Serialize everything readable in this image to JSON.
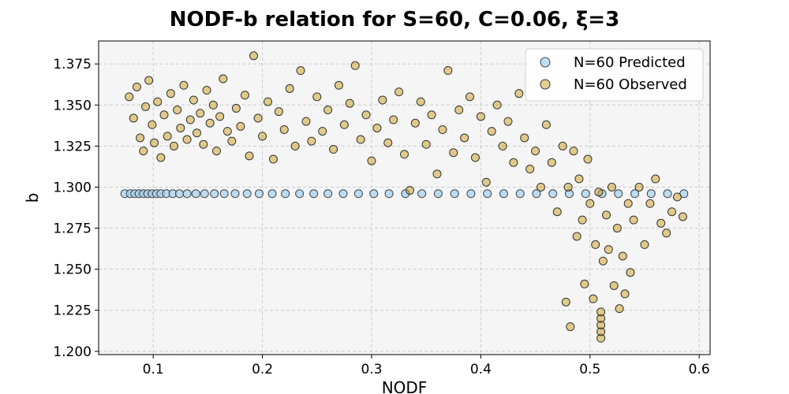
{
  "chart_data": {
    "type": "scatter",
    "title": "NODF-b relation for S=60, C=0.06, ξ=3",
    "xlabel": "NODF",
    "ylabel": "b",
    "xlim": [
      0.05,
      0.61
    ],
    "ylim": [
      1.198,
      1.389
    ],
    "xticks": [
      "0.1",
      "0.2",
      "0.3",
      "0.4",
      "0.5",
      "0.6"
    ],
    "yticks": [
      "1.200",
      "1.225",
      "1.250",
      "1.275",
      "1.300",
      "1.325",
      "1.350",
      "1.375"
    ],
    "grid": true,
    "legend_position": "top-right",
    "series": [
      {
        "name": "N=60 Predicted",
        "color": "#a7d3f0",
        "points": [
          [
            0.074,
            1.296
          ],
          [
            0.079,
            1.296
          ],
          [
            0.083,
            1.296
          ],
          [
            0.087,
            1.296
          ],
          [
            0.091,
            1.296
          ],
          [
            0.095,
            1.296
          ],
          [
            0.099,
            1.296
          ],
          [
            0.103,
            1.296
          ],
          [
            0.107,
            1.296
          ],
          [
            0.112,
            1.296
          ],
          [
            0.118,
            1.296
          ],
          [
            0.124,
            1.296
          ],
          [
            0.131,
            1.296
          ],
          [
            0.139,
            1.296
          ],
          [
            0.147,
            1.296
          ],
          [
            0.156,
            1.296
          ],
          [
            0.165,
            1.296
          ],
          [
            0.175,
            1.296
          ],
          [
            0.186,
            1.296
          ],
          [
            0.197,
            1.296
          ],
          [
            0.209,
            1.296
          ],
          [
            0.221,
            1.296
          ],
          [
            0.234,
            1.296
          ],
          [
            0.247,
            1.296
          ],
          [
            0.26,
            1.296
          ],
          [
            0.274,
            1.296
          ],
          [
            0.288,
            1.296
          ],
          [
            0.302,
            1.296
          ],
          [
            0.316,
            1.296
          ],
          [
            0.331,
            1.296
          ],
          [
            0.346,
            1.296
          ],
          [
            0.361,
            1.296
          ],
          [
            0.376,
            1.296
          ],
          [
            0.391,
            1.296
          ],
          [
            0.406,
            1.296
          ],
          [
            0.421,
            1.296
          ],
          [
            0.436,
            1.296
          ],
          [
            0.451,
            1.296
          ],
          [
            0.466,
            1.296
          ],
          [
            0.481,
            1.296
          ],
          [
            0.496,
            1.296
          ],
          [
            0.511,
            1.296
          ],
          [
            0.526,
            1.296
          ],
          [
            0.541,
            1.296
          ],
          [
            0.556,
            1.296
          ],
          [
            0.571,
            1.296
          ],
          [
            0.586,
            1.296
          ]
        ]
      },
      {
        "name": "N=60 Observed",
        "color": "#c8960c",
        "points": [
          [
            0.078,
            1.355
          ],
          [
            0.082,
            1.342
          ],
          [
            0.085,
            1.361
          ],
          [
            0.088,
            1.33
          ],
          [
            0.091,
            1.322
          ],
          [
            0.093,
            1.349
          ],
          [
            0.096,
            1.365
          ],
          [
            0.099,
            1.338
          ],
          [
            0.101,
            1.327
          ],
          [
            0.104,
            1.352
          ],
          [
            0.107,
            1.318
          ],
          [
            0.11,
            1.344
          ],
          [
            0.113,
            1.331
          ],
          [
            0.116,
            1.357
          ],
          [
            0.119,
            1.325
          ],
          [
            0.122,
            1.347
          ],
          [
            0.125,
            1.336
          ],
          [
            0.128,
            1.362
          ],
          [
            0.131,
            1.329
          ],
          [
            0.134,
            1.341
          ],
          [
            0.137,
            1.353
          ],
          [
            0.14,
            1.333
          ],
          [
            0.143,
            1.345
          ],
          [
            0.146,
            1.326
          ],
          [
            0.149,
            1.359
          ],
          [
            0.152,
            1.339
          ],
          [
            0.155,
            1.35
          ],
          [
            0.158,
            1.322
          ],
          [
            0.161,
            1.343
          ],
          [
            0.164,
            1.366
          ],
          [
            0.168,
            1.334
          ],
          [
            0.172,
            1.328
          ],
          [
            0.176,
            1.348
          ],
          [
            0.18,
            1.337
          ],
          [
            0.184,
            1.356
          ],
          [
            0.188,
            1.319
          ],
          [
            0.192,
            1.38
          ],
          [
            0.196,
            1.342
          ],
          [
            0.2,
            1.331
          ],
          [
            0.205,
            1.352
          ],
          [
            0.21,
            1.317
          ],
          [
            0.215,
            1.346
          ],
          [
            0.22,
            1.335
          ],
          [
            0.225,
            1.36
          ],
          [
            0.23,
            1.325
          ],
          [
            0.235,
            1.371
          ],
          [
            0.24,
            1.34
          ],
          [
            0.245,
            1.328
          ],
          [
            0.25,
            1.355
          ],
          [
            0.255,
            1.334
          ],
          [
            0.26,
            1.347
          ],
          [
            0.265,
            1.323
          ],
          [
            0.27,
            1.362
          ],
          [
            0.275,
            1.338
          ],
          [
            0.28,
            1.351
          ],
          [
            0.285,
            1.374
          ],
          [
            0.29,
            1.329
          ],
          [
            0.295,
            1.344
          ],
          [
            0.3,
            1.316
          ],
          [
            0.305,
            1.336
          ],
          [
            0.31,
            1.353
          ],
          [
            0.315,
            1.327
          ],
          [
            0.32,
            1.341
          ],
          [
            0.325,
            1.358
          ],
          [
            0.33,
            1.32
          ],
          [
            0.335,
            1.298
          ],
          [
            0.34,
            1.339
          ],
          [
            0.345,
            1.352
          ],
          [
            0.35,
            1.326
          ],
          [
            0.355,
            1.344
          ],
          [
            0.36,
            1.308
          ],
          [
            0.365,
            1.335
          ],
          [
            0.37,
            1.371
          ],
          [
            0.375,
            1.321
          ],
          [
            0.38,
            1.347
          ],
          [
            0.385,
            1.33
          ],
          [
            0.39,
            1.355
          ],
          [
            0.395,
            1.318
          ],
          [
            0.4,
            1.343
          ],
          [
            0.405,
            1.303
          ],
          [
            0.41,
            1.334
          ],
          [
            0.415,
            1.35
          ],
          [
            0.42,
            1.325
          ],
          [
            0.425,
            1.34
          ],
          [
            0.43,
            1.315
          ],
          [
            0.435,
            1.357
          ],
          [
            0.44,
            1.33
          ],
          [
            0.445,
            1.311
          ],
          [
            0.45,
            1.322
          ],
          [
            0.455,
            1.3
          ],
          [
            0.46,
            1.338
          ],
          [
            0.465,
            1.315
          ],
          [
            0.47,
            1.285
          ],
          [
            0.475,
            1.325
          ],
          [
            0.478,
            1.23
          ],
          [
            0.48,
            1.3
          ],
          [
            0.482,
            1.215
          ],
          [
            0.485,
            1.322
          ],
          [
            0.488,
            1.27
          ],
          [
            0.49,
            1.305
          ],
          [
            0.493,
            1.28
          ],
          [
            0.495,
            1.241
          ],
          [
            0.498,
            1.317
          ],
          [
            0.5,
            1.29
          ],
          [
            0.503,
            1.232
          ],
          [
            0.505,
            1.265
          ],
          [
            0.508,
            1.297
          ],
          [
            0.51,
            1.208
          ],
          [
            0.51,
            1.212
          ],
          [
            0.51,
            1.216
          ],
          [
            0.51,
            1.22
          ],
          [
            0.51,
            1.224
          ],
          [
            0.512,
            1.255
          ],
          [
            0.515,
            1.283
          ],
          [
            0.517,
            1.262
          ],
          [
            0.52,
            1.3
          ],
          [
            0.522,
            1.24
          ],
          [
            0.525,
            1.275
          ],
          [
            0.527,
            1.226
          ],
          [
            0.53,
            1.258
          ],
          [
            0.532,
            1.235
          ],
          [
            0.535,
            1.29
          ],
          [
            0.537,
            1.248
          ],
          [
            0.54,
            1.28
          ],
          [
            0.545,
            1.3
          ],
          [
            0.55,
            1.265
          ],
          [
            0.555,
            1.29
          ],
          [
            0.56,
            1.305
          ],
          [
            0.565,
            1.278
          ],
          [
            0.57,
            1.272
          ],
          [
            0.575,
            1.285
          ],
          [
            0.58,
            1.294
          ],
          [
            0.585,
            1.282
          ]
        ]
      }
    ]
  }
}
